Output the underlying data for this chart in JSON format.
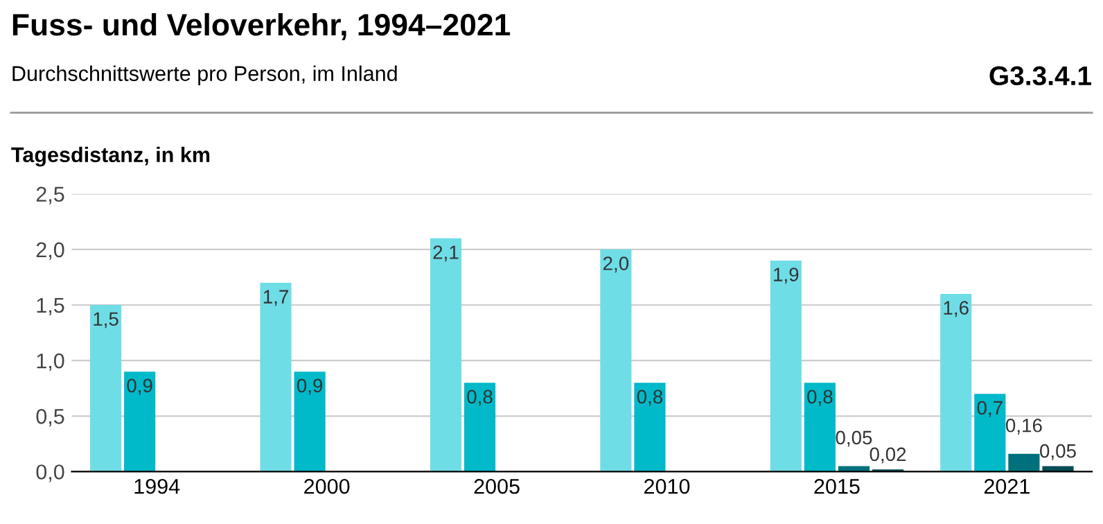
{
  "chart_data": {
    "type": "bar",
    "title": "Fuss- und Veloverkehr, 1994–2021",
    "subtitle": "Durchschnittswerte pro Person, im Inland",
    "ylabel": "Tagesdistanz, in km",
    "annotations": [
      "G3.3.4.1"
    ],
    "categories": [
      "1994",
      "2000",
      "2005",
      "2010",
      "2015",
      "2021"
    ],
    "series": [
      {
        "color": "#6fdde6",
        "values": [
          1.5,
          1.7,
          2.1,
          2.0,
          1.9,
          1.6
        ],
        "value_labels": [
          "1,5",
          "1,7",
          "2,1",
          "2,0",
          "1,9",
          "1,6"
        ]
      },
      {
        "color": "#00b9c9",
        "values": [
          0.9,
          0.9,
          0.8,
          0.8,
          0.8,
          0.7
        ],
        "value_labels": [
          "0,9",
          "0,9",
          "0,8",
          "0,8",
          "0,8",
          "0,7"
        ]
      },
      {
        "color": "#00707c",
        "values": [
          null,
          null,
          null,
          null,
          0.05,
          0.16
        ],
        "value_labels": [
          null,
          null,
          null,
          null,
          "0,05",
          "0,16"
        ]
      },
      {
        "color": "#004c55",
        "values": [
          null,
          null,
          null,
          null,
          0.02,
          0.05
        ],
        "value_labels": [
          null,
          null,
          null,
          null,
          "0,02",
          "0,05"
        ]
      }
    ],
    "ylim": [
      0,
      2.5
    ],
    "yticks": [
      {
        "value": 0,
        "label": "0,0"
      },
      {
        "value": 0.5,
        "label": "0,5"
      },
      {
        "value": 1.0,
        "label": "1,0"
      },
      {
        "value": 1.5,
        "label": "1,5"
      },
      {
        "value": 2.0,
        "label": "2,0"
      },
      {
        "value": 2.5,
        "label": "2,5"
      }
    ],
    "grid": "y",
    "legend": false
  }
}
